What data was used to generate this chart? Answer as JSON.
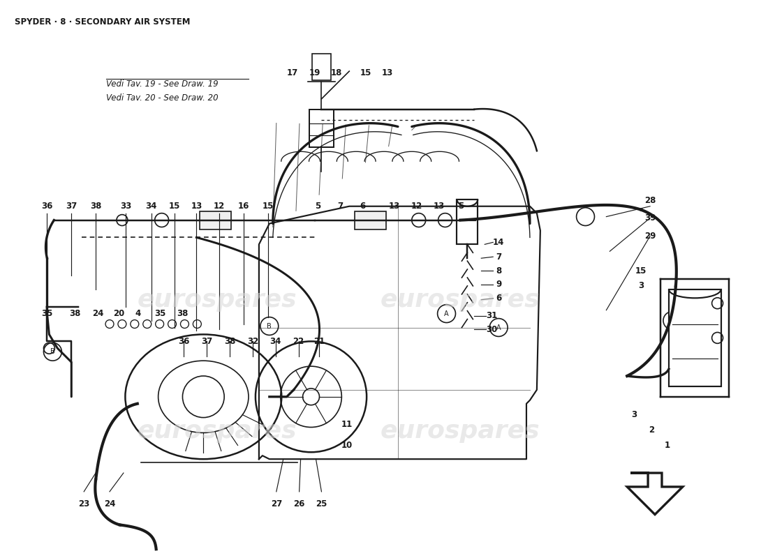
{
  "title": "SPYDER · 8 · SECONDARY AIR SYSTEM",
  "title_fontsize": 8.5,
  "title_fontweight": "bold",
  "ref_text1": "Vedi Tav. 19 - See Draw. 19",
  "ref_text2": "Vedi Tav. 20 - See Draw. 20",
  "background_color": "#ffffff",
  "diagram_color": "#1a1a1a",
  "watermark_color": "#d8d8d8",
  "watermark_text": "eurospares",
  "labels_row_top": [
    [
      "36",
      65,
      295
    ],
    [
      "37",
      100,
      295
    ],
    [
      "38",
      135,
      295
    ],
    [
      "33",
      178,
      295
    ],
    [
      "34",
      215,
      295
    ],
    [
      "15",
      248,
      295
    ],
    [
      "13",
      280,
      295
    ],
    [
      "12",
      313,
      295
    ],
    [
      "16",
      348,
      295
    ],
    [
      "15",
      383,
      295
    ],
    [
      "5",
      455,
      295
    ],
    [
      "7",
      487,
      295
    ],
    [
      "6",
      519,
      295
    ],
    [
      "13",
      565,
      295
    ],
    [
      "12",
      597,
      295
    ],
    [
      "13",
      629,
      295
    ],
    [
      "5",
      661,
      295
    ],
    [
      "28",
      933,
      287
    ],
    [
      "39",
      933,
      312
    ],
    [
      "29",
      933,
      338
    ]
  ],
  "labels_right_col": [
    [
      "14",
      715,
      347
    ],
    [
      "7",
      715,
      368
    ],
    [
      "8",
      715,
      388
    ],
    [
      "9",
      715,
      408
    ],
    [
      "6",
      715,
      428
    ],
    [
      "31",
      705,
      453
    ],
    [
      "30",
      705,
      473
    ]
  ],
  "labels_top_row": [
    [
      "17",
      418,
      102
    ],
    [
      "19",
      450,
      102
    ],
    [
      "18",
      482,
      102
    ],
    [
      "15",
      524,
      102
    ],
    [
      "13",
      555,
      102
    ]
  ],
  "labels_left_mid": [
    [
      "35",
      65,
      450
    ],
    [
      "38",
      105,
      450
    ],
    [
      "24",
      138,
      450
    ],
    [
      "20",
      168,
      450
    ],
    [
      "4",
      196,
      450
    ],
    [
      "35",
      228,
      450
    ],
    [
      "38",
      260,
      450
    ]
  ],
  "labels_pump_top": [
    [
      "36",
      262,
      490
    ],
    [
      "37",
      295,
      490
    ],
    [
      "38",
      328,
      490
    ],
    [
      "32",
      361,
      490
    ],
    [
      "34",
      394,
      490
    ],
    [
      "22",
      427,
      490
    ],
    [
      "21",
      457,
      490
    ]
  ],
  "labels_bottom": [
    [
      "23",
      118,
      725
    ],
    [
      "24",
      155,
      725
    ],
    [
      "27",
      395,
      725
    ],
    [
      "26",
      428,
      725
    ],
    [
      "25",
      460,
      725
    ]
  ],
  "labels_bottom_right": [
    [
      "11",
      497,
      610
    ],
    [
      "10",
      497,
      640
    ]
  ],
  "labels_far_right": [
    [
      "15",
      920,
      388
    ],
    [
      "3",
      920,
      410
    ],
    [
      "3",
      910,
      596
    ],
    [
      "2",
      935,
      618
    ],
    [
      "1",
      958,
      640
    ]
  ]
}
